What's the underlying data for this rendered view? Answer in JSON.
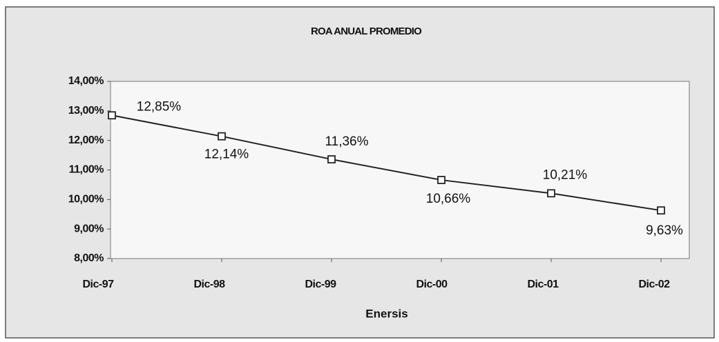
{
  "chart_data": {
    "type": "line",
    "title": "ROA ANUAL PROMEDIO",
    "x_label": "Enersis",
    "categories": [
      "Dic-97",
      "Dic-98",
      "Dic-99",
      "Dic-00",
      "Dic-01",
      "Dic-02"
    ],
    "series": [
      {
        "name": "Enersis",
        "color": "#222222",
        "values": [
          12.85,
          12.14,
          11.36,
          10.66,
          10.21,
          9.63
        ],
        "value_labels": [
          "12,85%",
          "12,14%",
          "11,36%",
          "10,66%",
          "10,21%",
          "9,63%"
        ]
      }
    ],
    "ylim": [
      8,
      14
    ],
    "yticks": [
      {
        "value": 8,
        "label": "8,00%"
      },
      {
        "value": 9,
        "label": "9,00%"
      },
      {
        "value": 10,
        "label": "10,00%"
      },
      {
        "value": 11,
        "label": "11,00%"
      },
      {
        "value": 12,
        "label": "12,00%"
      },
      {
        "value": 13,
        "label": "13,00%"
      },
      {
        "value": 14,
        "label": "14,00%"
      }
    ],
    "grid": false
  }
}
